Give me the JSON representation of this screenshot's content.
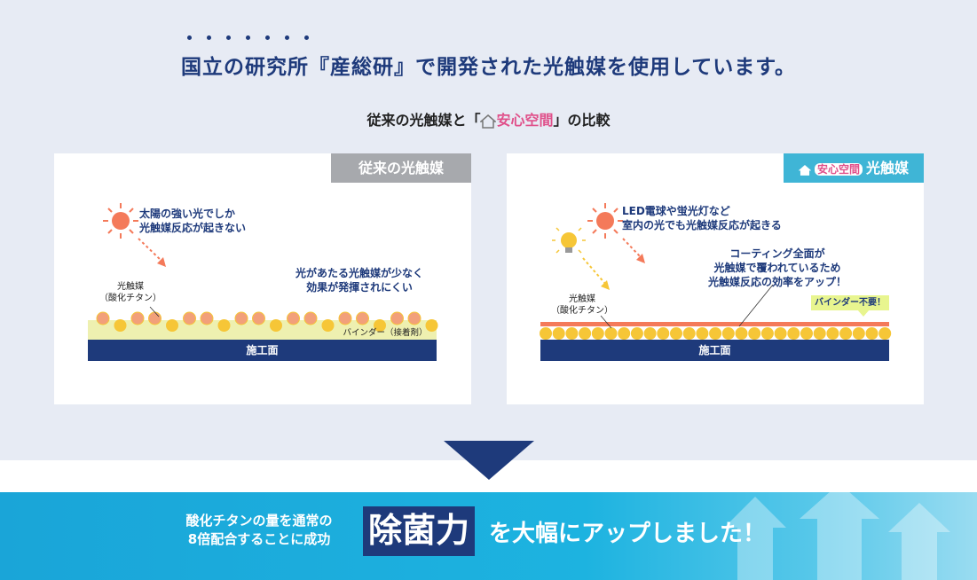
{
  "headline": {
    "text": "国立の研究所『産総研』で開発された光触媒を使用しています。",
    "emphasis_dots": 7
  },
  "subtitle": {
    "before": "従来の光触媒と「",
    "brand": "安心空間",
    "after": "」の比較"
  },
  "left_card": {
    "tag": "従来の光触媒",
    "sun_text": "太陽の強い光でしか\n光触媒反応が起きない",
    "effect_text": "光があたる光触媒が少なく\n効果が発揮されにくい",
    "catalyst_label": "光触媒\n（酸化チタン）",
    "binder_label": "バインダー（接着剤）",
    "surface_label": "施工面"
  },
  "right_card": {
    "tag_brand": "安心空間",
    "tag_text": "光触媒",
    "light_text": "LED電球や蛍光灯など\n室内の光でも光触媒反応が起きる",
    "coating_text": "コーティング全面が\n光触媒で覆われているため\n光触媒反応の効率をアップ！",
    "catalyst_label": "光触媒\n（酸化チタン）",
    "binder_badge": "バインダー不要！",
    "surface_label": "施工面"
  },
  "bottom": {
    "left_line1": "酸化チタンの量を通常の",
    "left_line2": "8倍配合することに成功",
    "power": "除菌力",
    "rest": "を大幅にアップしました！"
  },
  "colors": {
    "navy": "#1e3a7b",
    "bg_light": "#e7ebf4",
    "gray_tag": "#a7a9ad",
    "blue_tag": "#3fb5d6",
    "sun": "#f47a5a",
    "catalyst_orange": "#f2a07a",
    "catalyst_yellow": "#f6c637",
    "binder": "#eef0b0",
    "banner": "#1aa5d8"
  }
}
